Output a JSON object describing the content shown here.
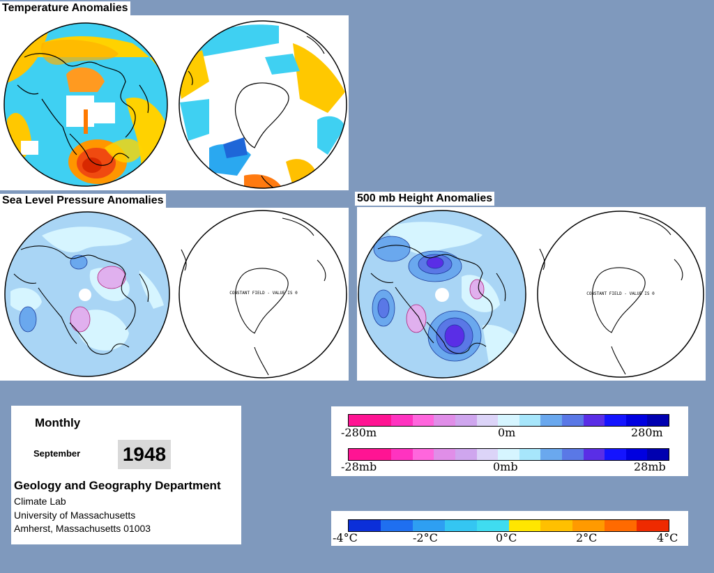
{
  "panels": {
    "temperature": {
      "title": "Temperature Anomalies"
    },
    "slp": {
      "title": "Sea Level Pressure Anomalies",
      "sh_annotation": "CONSTANT FIELD - VALUE IS 0"
    },
    "height500": {
      "title": "500 mb Height Anomalies",
      "sh_annotation": "CONSTANT FIELD - VALUE IS 0"
    }
  },
  "info": {
    "period": "Monthly",
    "month": "September",
    "year": "1948",
    "department": "Geology and Geography Department",
    "lab": "Climate Lab",
    "university": "University of Massachusetts",
    "address": "Amherst, Massachusetts 01003"
  },
  "legends": {
    "height": {
      "labels": [
        "-280m",
        "0m",
        "280m"
      ],
      "colors": [
        "#ff1493",
        "#ff1493",
        "#ff33c0",
        "#ff66dd",
        "#e08ee8",
        "#cfa6ee",
        "#dcd4f8",
        "#d6f5ff",
        "#a7e6fb",
        "#6aa8ee",
        "#5a78e6",
        "#5a2ee6",
        "#1414ff",
        "#0000e0",
        "#0000b0"
      ]
    },
    "pressure": {
      "labels": [
        "-28mb",
        "0mb",
        "28mb"
      ],
      "colors": [
        "#ff1493",
        "#ff1493",
        "#ff33c0",
        "#ff66dd",
        "#e08ee8",
        "#cfa6ee",
        "#dcd4f8",
        "#d6f5ff",
        "#a7e6fb",
        "#6aa8ee",
        "#5a78e6",
        "#5a2ee6",
        "#1414ff",
        "#0000e0",
        "#0000b0"
      ]
    },
    "temperature": {
      "labels": [
        "-4°C",
        "-2°C",
        "0°C",
        "2°C",
        "4°C"
      ],
      "colors": [
        "#0b2fd9",
        "#1f6ff0",
        "#2e9ff2",
        "#34c6f2",
        "#3fdcf0",
        "#ffe600",
        "#ffc000",
        "#ff9a00",
        "#ff6a00",
        "#ee2a00"
      ]
    }
  }
}
